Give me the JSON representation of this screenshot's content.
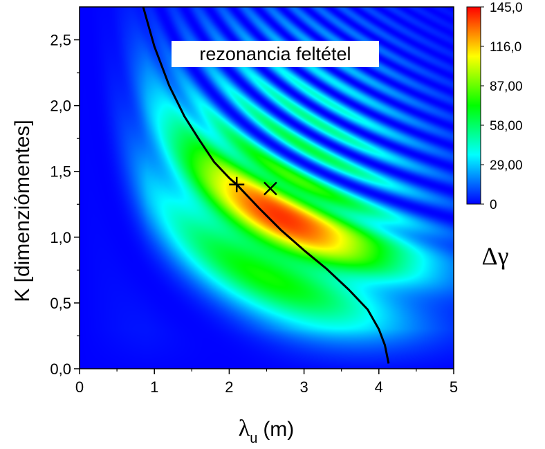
{
  "chart_data": {
    "type": "heatmap",
    "title": "",
    "xlabel": {
      "symbol": "λ",
      "subscript": "u",
      "unit": "(m)"
    },
    "ylabel": "K [dimenziómentes]",
    "xlim": [
      0,
      5
    ],
    "ylim": [
      0,
      2.75
    ],
    "x_ticks": [
      {
        "value": 0,
        "label": "0"
      },
      {
        "value": 1,
        "label": "1"
      },
      {
        "value": 2,
        "label": "2"
      },
      {
        "value": 3,
        "label": "3"
      },
      {
        "value": 4,
        "label": "4"
      },
      {
        "value": 5,
        "label": "5"
      }
    ],
    "y_ticks": [
      {
        "value": 0.0,
        "label": "0,0"
      },
      {
        "value": 0.5,
        "label": "0,5"
      },
      {
        "value": 1.0,
        "label": "1,0"
      },
      {
        "value": 1.5,
        "label": "1,5"
      },
      {
        "value": 2.0,
        "label": "2,0"
      },
      {
        "value": 2.5,
        "label": "2,5"
      }
    ],
    "colorbar": {
      "title": "Δγ",
      "range": [
        0,
        145
      ],
      "labels": [
        {
          "value": 0,
          "label": "0"
        },
        {
          "value": 29,
          "label": "29,00"
        },
        {
          "value": 58,
          "label": "58,00"
        },
        {
          "value": 87,
          "label": "87,00"
        },
        {
          "value": 116,
          "label": "116,0"
        },
        {
          "value": 145,
          "label": "145,0"
        }
      ],
      "colors": [
        "#0000ff",
        "#00ffff",
        "#00ff00",
        "#ffff00",
        "#ff0000"
      ]
    },
    "peak": {
      "x": 2.7,
      "y": 1.15,
      "value": 145
    },
    "resonance_curve": {
      "label": "rezonancia feltétel",
      "points": [
        [
          0.85,
          2.75
        ],
        [
          1.0,
          2.45
        ],
        [
          1.2,
          2.15
        ],
        [
          1.4,
          1.92
        ],
        [
          1.6,
          1.74
        ],
        [
          1.8,
          1.57
        ],
        [
          2.0,
          1.45
        ],
        [
          2.1,
          1.4
        ],
        [
          2.4,
          1.22
        ],
        [
          2.7,
          1.05
        ],
        [
          3.0,
          0.9
        ],
        [
          3.3,
          0.76
        ],
        [
          3.6,
          0.6
        ],
        [
          3.85,
          0.45
        ],
        [
          4.0,
          0.3
        ],
        [
          4.08,
          0.18
        ],
        [
          4.13,
          0.04
        ]
      ]
    },
    "markers": [
      {
        "shape": "plus",
        "x": 2.1,
        "y": 1.4
      },
      {
        "shape": "cross",
        "x": 2.55,
        "y": 1.37
      }
    ]
  }
}
